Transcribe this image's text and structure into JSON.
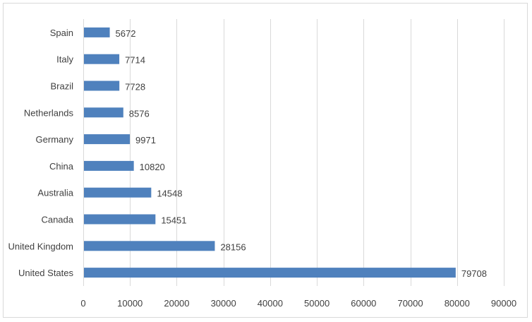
{
  "chart_data": {
    "type": "bar",
    "orientation": "horizontal",
    "title": "",
    "xlabel": "",
    "ylabel": "",
    "categories": [
      "Spain",
      "Italy",
      "Brazil",
      "Netherlands",
      "Germany",
      "China",
      "Australia",
      "Canada",
      "United Kingdom",
      "United States"
    ],
    "values": [
      5672,
      7714,
      7728,
      8576,
      9971,
      10820,
      14548,
      15451,
      28156,
      79708
    ],
    "xlim": [
      0,
      90000
    ],
    "xticks": [
      0,
      10000,
      20000,
      30000,
      40000,
      50000,
      60000,
      70000,
      80000,
      90000
    ],
    "xtick_labels": [
      "0",
      "10000",
      "20000",
      "30000",
      "40000",
      "50000",
      "60000",
      "70000",
      "80000",
      "90000"
    ],
    "value_labels": [
      "5672",
      "7714",
      "7728",
      "8576",
      "9971",
      "10820",
      "14548",
      "15451",
      "28156",
      "79708"
    ],
    "grid": "vertical",
    "legend": "none",
    "bar_color": "#4f81bd",
    "grid_color": "#d9d9d9"
  }
}
